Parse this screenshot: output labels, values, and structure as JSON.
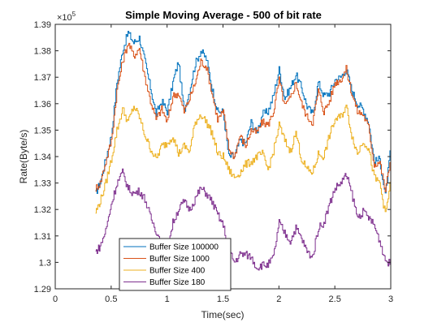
{
  "chart_data": {
    "type": "line",
    "title": "Simple Moving Average - 500 of bit rate",
    "xlabel": "Time(sec)",
    "ylabel": "Rate(Byte/s)",
    "xlim": [
      0,
      3
    ],
    "ylim": [
      129000,
      139000
    ],
    "x_ticks": [
      "0",
      "0.5",
      "1",
      "1.5",
      "2",
      "2.5",
      "3"
    ],
    "y_ticks": [
      "1.29",
      "1.3",
      "1.31",
      "1.32",
      "1.33",
      "1.34",
      "1.35",
      "1.36",
      "1.37",
      "1.38",
      "1.39"
    ],
    "y_exponent": {
      "base": "×10",
      "power": "5"
    },
    "grid": false,
    "legend_position": "bottom-left",
    "series": [
      {
        "name": "Buffer Size 100000",
        "color": "#0072BD",
        "x": [
          0.36,
          0.4,
          0.45,
          0.5,
          0.55,
          0.6,
          0.65,
          0.7,
          0.75,
          0.8,
          0.85,
          0.9,
          0.95,
          1.0,
          1.05,
          1.1,
          1.15,
          1.2,
          1.25,
          1.3,
          1.35,
          1.4,
          1.45,
          1.5,
          1.55,
          1.6,
          1.65,
          1.7,
          1.75,
          1.8,
          1.85,
          1.9,
          1.95,
          2.0,
          2.05,
          2.1,
          2.15,
          2.2,
          2.25,
          2.3,
          2.35,
          2.4,
          2.45,
          2.5,
          2.55,
          2.6,
          2.65,
          2.7,
          2.75,
          2.8,
          2.85,
          2.9,
          2.95,
          3.0
        ],
        "y": [
          132600,
          133000,
          133900,
          134800,
          136800,
          138000,
          138700,
          138300,
          138500,
          137600,
          136600,
          135600,
          136100,
          135700,
          136800,
          137600,
          135700,
          136500,
          137500,
          138000,
          137700,
          136600,
          135700,
          135700,
          134000,
          134000,
          134600,
          134500,
          135300,
          134900,
          135600,
          135700,
          136300,
          137300,
          136200,
          136600,
          137100,
          136600,
          135900,
          135600,
          136800,
          136300,
          136400,
          136900,
          137000,
          137300,
          136500,
          136000,
          135800,
          135300,
          133800,
          133900,
          132500,
          134400
        ]
      },
      {
        "name": "Buffer Size 1000",
        "color": "#D95319",
        "x": [
          0.36,
          0.4,
          0.45,
          0.5,
          0.55,
          0.6,
          0.65,
          0.7,
          0.75,
          0.8,
          0.85,
          0.9,
          0.95,
          1.0,
          1.05,
          1.1,
          1.15,
          1.2,
          1.25,
          1.3,
          1.35,
          1.4,
          1.45,
          1.5,
          1.55,
          1.6,
          1.65,
          1.7,
          1.75,
          1.8,
          1.85,
          1.9,
          1.95,
          2.0,
          2.05,
          2.1,
          2.15,
          2.2,
          2.25,
          2.3,
          2.35,
          2.4,
          2.45,
          2.5,
          2.55,
          2.6,
          2.65,
          2.7,
          2.75,
          2.8,
          2.85,
          2.9,
          2.95,
          3.0
        ],
        "y": [
          132800,
          133000,
          133800,
          134600,
          136500,
          137600,
          138300,
          137800,
          138100,
          137000,
          136100,
          135400,
          135800,
          135300,
          136300,
          136400,
          135700,
          136200,
          136800,
          137600,
          137400,
          136400,
          135400,
          135700,
          134300,
          134000,
          134800,
          134400,
          135000,
          134900,
          135300,
          135200,
          135700,
          136900,
          135900,
          136200,
          136800,
          136000,
          135500,
          135300,
          136500,
          135700,
          136100,
          136800,
          136900,
          137300,
          136400,
          135700,
          135600,
          135100,
          133700,
          133800,
          132700,
          134000
        ]
      },
      {
        "name": "Buffer Size 400",
        "color": "#EDB120",
        "x": [
          0.36,
          0.4,
          0.45,
          0.5,
          0.55,
          0.6,
          0.65,
          0.7,
          0.75,
          0.8,
          0.85,
          0.9,
          0.95,
          1.0,
          1.05,
          1.1,
          1.15,
          1.2,
          1.25,
          1.3,
          1.35,
          1.4,
          1.45,
          1.5,
          1.55,
          1.6,
          1.65,
          1.7,
          1.75,
          1.8,
          1.85,
          1.9,
          1.95,
          2.0,
          2.05,
          2.1,
          2.15,
          2.2,
          2.25,
          2.3,
          2.35,
          2.4,
          2.45,
          2.5,
          2.55,
          2.6,
          2.65,
          2.7,
          2.75,
          2.8,
          2.85,
          2.9,
          2.95,
          3.0
        ],
        "y": [
          131900,
          132300,
          133000,
          133900,
          135000,
          135800,
          135300,
          135900,
          135500,
          134800,
          134300,
          133900,
          134400,
          134500,
          134800,
          134100,
          134400,
          134200,
          135300,
          135600,
          135300,
          134900,
          134100,
          134000,
          133500,
          133200,
          133400,
          133700,
          133800,
          134000,
          134100,
          133500,
          134200,
          135200,
          134600,
          134200,
          134900,
          133900,
          133500,
          133400,
          134100,
          134000,
          134800,
          135400,
          135500,
          135900,
          134800,
          134100,
          134600,
          134300,
          133200,
          133000,
          131800,
          133100
        ]
      },
      {
        "name": "Buffer Size 180",
        "color": "#7E2F8E",
        "x": [
          0.36,
          0.4,
          0.45,
          0.5,
          0.55,
          0.6,
          0.65,
          0.7,
          0.75,
          0.8,
          0.85,
          0.9,
          0.95,
          1.0,
          1.05,
          1.1,
          1.15,
          1.2,
          1.25,
          1.3,
          1.35,
          1.4,
          1.45,
          1.5,
          1.55,
          1.6,
          1.65,
          1.7,
          1.75,
          1.8,
          1.85,
          1.9,
          1.95,
          2.0,
          2.05,
          2.1,
          2.15,
          2.2,
          2.25,
          2.3,
          2.35,
          2.4,
          2.45,
          2.5,
          2.55,
          2.6,
          2.65,
          2.7,
          2.75,
          2.8,
          2.85,
          2.9,
          2.95,
          3.0
        ],
        "y": [
          130400,
          130600,
          131200,
          132200,
          133000,
          133400,
          132800,
          132600,
          132700,
          132400,
          131700,
          131200,
          130700,
          130500,
          131500,
          132000,
          132300,
          132000,
          132400,
          132800,
          132600,
          132300,
          131800,
          131400,
          130500,
          130000,
          130300,
          130300,
          130200,
          129800,
          129900,
          129900,
          130200,
          131500,
          131100,
          130800,
          131300,
          130900,
          130400,
          130200,
          131300,
          131500,
          132200,
          132800,
          133000,
          133300,
          132600,
          131700,
          131900,
          131700,
          131400,
          130800,
          130100,
          129900
        ]
      }
    ]
  }
}
